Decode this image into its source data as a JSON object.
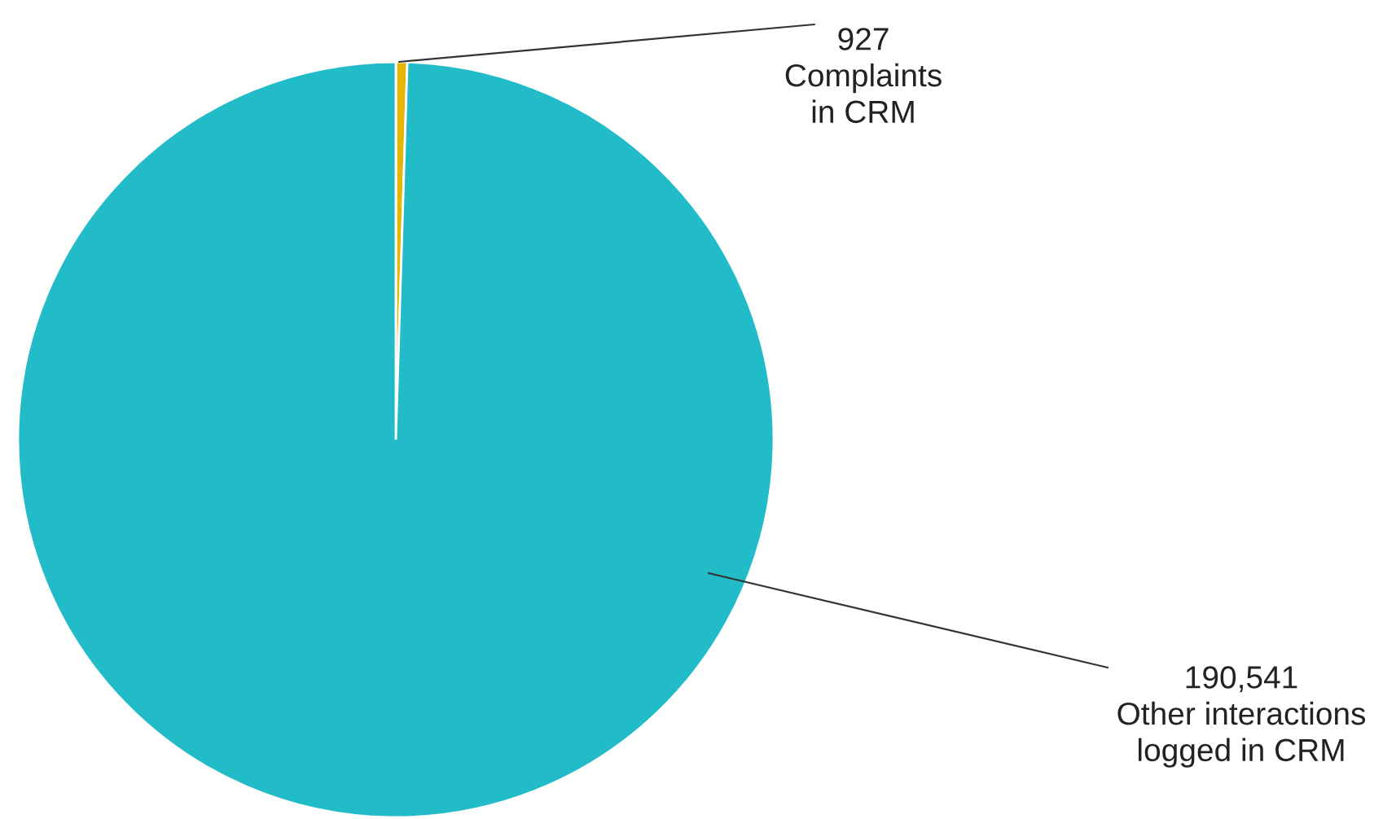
{
  "chart_data": {
    "type": "pie",
    "categories": [
      "Complaints\nin CRM",
      "Other interactions\nlogged in CRM"
    ],
    "values": [
      927,
      190541
    ],
    "value_labels": [
      "927",
      "190,541"
    ],
    "colors": [
      "#e3b505",
      "#22bcc9"
    ]
  }
}
